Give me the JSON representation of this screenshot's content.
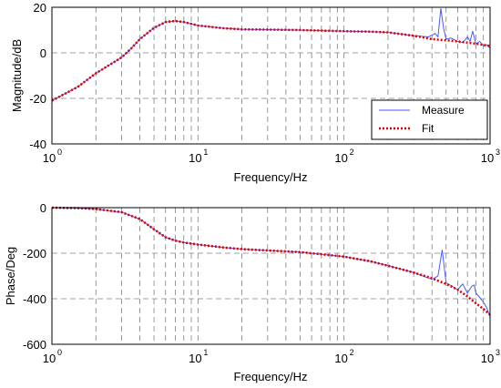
{
  "colors": {
    "measure": "#4a5aff",
    "fit": "#e00000",
    "grid": "#808080",
    "axis": "#000000"
  },
  "chart_data": [
    {
      "type": "line",
      "x_scale": "log",
      "xlim": [
        1,
        1000
      ],
      "ylim": [
        -40,
        20
      ],
      "xlabel": "Frequency/Hz",
      "ylabel": "Magnitude/dB",
      "x_tick_labels": [
        {
          "base": "10",
          "exp": "0"
        },
        {
          "base": "10",
          "exp": "1"
        },
        {
          "base": "10",
          "exp": "2"
        },
        {
          "base": "10",
          "exp": "3"
        }
      ],
      "y_ticks": [
        -40,
        -20,
        0,
        20
      ],
      "grid": true,
      "legend": {
        "position": "bottom-right",
        "entries": [
          "Measure",
          "Fit"
        ]
      },
      "series": [
        {
          "name": "Measure",
          "x": [
            1,
            1.5,
            2,
            3,
            3.5,
            4,
            5,
            6,
            7,
            8,
            10,
            15,
            20,
            30,
            50,
            100,
            150,
            200,
            300,
            380,
            420,
            440,
            460,
            480,
            500,
            540,
            600,
            650,
            700,
            730,
            760,
            800,
            850,
            900,
            950,
            1000
          ],
          "y": [
            -21,
            -15,
            -9,
            -2,
            2,
            6,
            11,
            13.5,
            14,
            13.5,
            12,
            10.8,
            10.3,
            10.2,
            10,
            9.5,
            9.3,
            9.0,
            7.5,
            7.0,
            8.5,
            7.0,
            19.5,
            11,
            6,
            6.5,
            5,
            4.5,
            7,
            5,
            9.5,
            4,
            5,
            3,
            3.5,
            2
          ]
        },
        {
          "name": "Fit",
          "x": [
            1,
            1.5,
            2,
            3,
            3.5,
            4,
            5,
            6,
            7,
            8,
            10,
            15,
            20,
            30,
            50,
            100,
            150,
            200,
            300,
            400,
            500,
            600,
            700,
            800,
            900,
            1000
          ],
          "y": [
            -21,
            -15,
            -9,
            -2,
            2,
            6,
            11,
            13.5,
            14,
            13.5,
            12,
            10.8,
            10.3,
            10.2,
            10,
            9.5,
            9.3,
            9.0,
            7.5,
            6.0,
            5.5,
            5.0,
            4.5,
            4.0,
            3.5,
            3
          ]
        }
      ]
    },
    {
      "type": "line",
      "x_scale": "log",
      "xlim": [
        1,
        1000
      ],
      "ylim": [
        -600,
        0
      ],
      "xlabel": "Frequency/Hz",
      "ylabel": "Phase/Deg",
      "x_tick_labels": [
        {
          "base": "10",
          "exp": "0"
        },
        {
          "base": "10",
          "exp": "1"
        },
        {
          "base": "10",
          "exp": "2"
        },
        {
          "base": "10",
          "exp": "3"
        }
      ],
      "y_ticks": [
        -600,
        -400,
        -200,
        0
      ],
      "grid": true,
      "series": [
        {
          "name": "Measure",
          "x": [
            1,
            1.5,
            2,
            3,
            4,
            5,
            6,
            7,
            8,
            10,
            15,
            20,
            30,
            50,
            100,
            150,
            200,
            300,
            400,
            440,
            470,
            500,
            550,
            600,
            650,
            700,
            750,
            780,
            800,
            850,
            900,
            950,
            1000
          ],
          "y": [
            0,
            -2,
            -6,
            -20,
            -50,
            -95,
            -130,
            -145,
            -153,
            -162,
            -175,
            -182,
            -188,
            -195,
            -215,
            -235,
            -255,
            -285,
            -315,
            -300,
            -185,
            -330,
            -345,
            -360,
            -335,
            -375,
            -345,
            -340,
            -375,
            -395,
            -415,
            -440,
            -480
          ]
        },
        {
          "name": "Fit",
          "x": [
            1,
            1.5,
            2,
            3,
            4,
            5,
            6,
            7,
            8,
            10,
            15,
            20,
            30,
            50,
            100,
            150,
            200,
            300,
            400,
            500,
            600,
            700,
            800,
            900,
            1000
          ],
          "y": [
            0,
            -2,
            -6,
            -20,
            -50,
            -95,
            -130,
            -145,
            -153,
            -162,
            -175,
            -182,
            -188,
            -195,
            -215,
            -235,
            -255,
            -285,
            -310,
            -335,
            -360,
            -390,
            -420,
            -445,
            -470
          ]
        }
      ]
    }
  ]
}
